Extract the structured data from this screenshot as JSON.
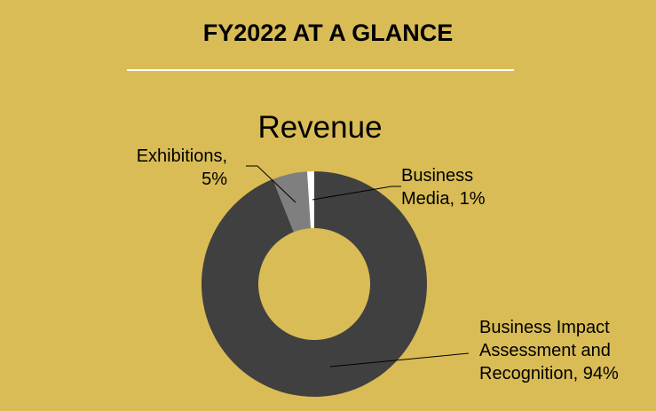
{
  "page": {
    "title": "FY2022 AT A GLANCE"
  },
  "chart_data": {
    "type": "pie",
    "donut": true,
    "title": "Revenue",
    "slices": [
      {
        "label": "Business Impact Assessment and Recognition",
        "value": 94,
        "display": "Business Impact Assessment and Recognition, 94%",
        "color": "#404040"
      },
      {
        "label": "Exhibitions",
        "value": 5,
        "display": "Exhibitions, 5%",
        "color": "#7f7f7f"
      },
      {
        "label": "Business Media",
        "value": 1,
        "display": "Business Media, 1%",
        "color": "#ffffff"
      }
    ],
    "legend": "none"
  }
}
